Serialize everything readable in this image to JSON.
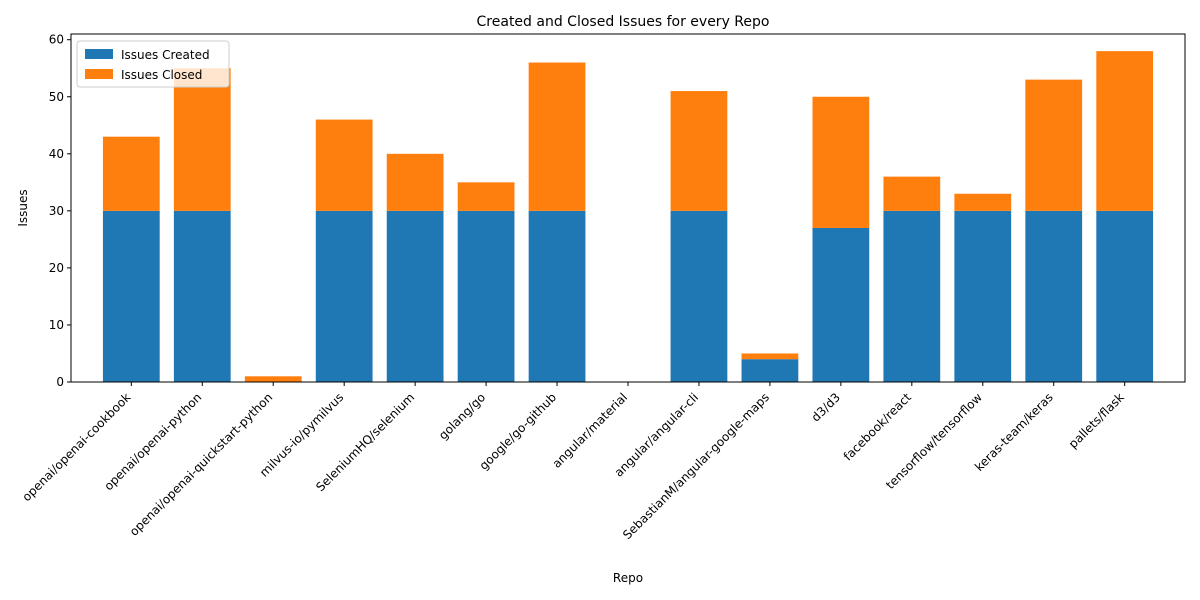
{
  "chart_data": {
    "type": "bar",
    "stacked": true,
    "title": "Created and Closed Issues for every Repo",
    "xlabel": "Repo",
    "ylabel": "Issues",
    "ylim": [
      0,
      61
    ],
    "yticks": [
      0,
      10,
      20,
      30,
      40,
      50,
      60
    ],
    "grid": false,
    "legend_position": "top-left",
    "categories": [
      "openai/openai-cookbook",
      "openai/openai-python",
      "openai/openai-quickstart-python",
      "milvus-io/pymilvus",
      "SeleniumHQ/selenium",
      "golang/go",
      "google/go-github",
      "angular/material",
      "angular/angular-cli",
      "SebastianM/angular-google-maps",
      "d3/d3",
      "facebook/react",
      "tensorflow/tensorflow",
      "keras-team/keras",
      "pallets/flask"
    ],
    "series": [
      {
        "name": "Issues Created",
        "color": "#1f77b4",
        "values": [
          30,
          30,
          0,
          30,
          30,
          30,
          30,
          0,
          30,
          4,
          27,
          30,
          30,
          30,
          30
        ]
      },
      {
        "name": "Issues Closed",
        "color": "#ff7f0e",
        "values": [
          13,
          25,
          1,
          16,
          10,
          5,
          26,
          0,
          21,
          1,
          23,
          6,
          3,
          23,
          28
        ]
      }
    ]
  }
}
